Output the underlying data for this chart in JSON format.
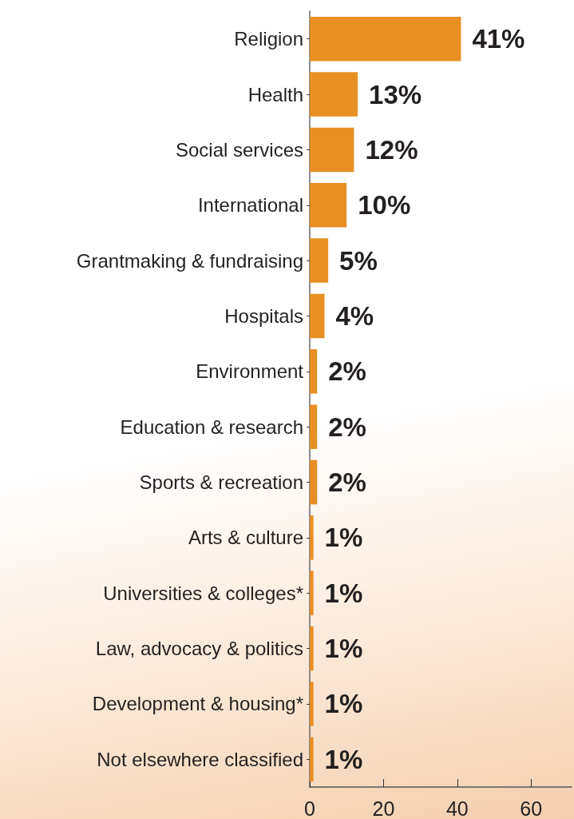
{
  "chart_data": {
    "type": "bar",
    "orientation": "horizontal",
    "categories": [
      "Religion",
      "Health",
      "Social services",
      "International",
      "Grantmaking & fundraising",
      "Hospitals",
      "Environment",
      "Education & research",
      "Sports & recreation",
      "Arts & culture",
      "Universities & colleges*",
      "Law, advocacy & politics",
      "Development & housing*",
      "Not elsewhere classified"
    ],
    "values": [
      41,
      13,
      12,
      10,
      5,
      4,
      2,
      2,
      2,
      1,
      1,
      1,
      1,
      1
    ],
    "value_labels": [
      "41%",
      "13%",
      "12%",
      "10%",
      "5%",
      "4%",
      "2%",
      "2%",
      "2%",
      "1%",
      "1%",
      "1%",
      "1%",
      "1%"
    ],
    "color": "#e88f24",
    "xlim": [
      0,
      71
    ],
    "xticks": [
      0,
      20,
      40,
      60
    ],
    "grid": false
  }
}
